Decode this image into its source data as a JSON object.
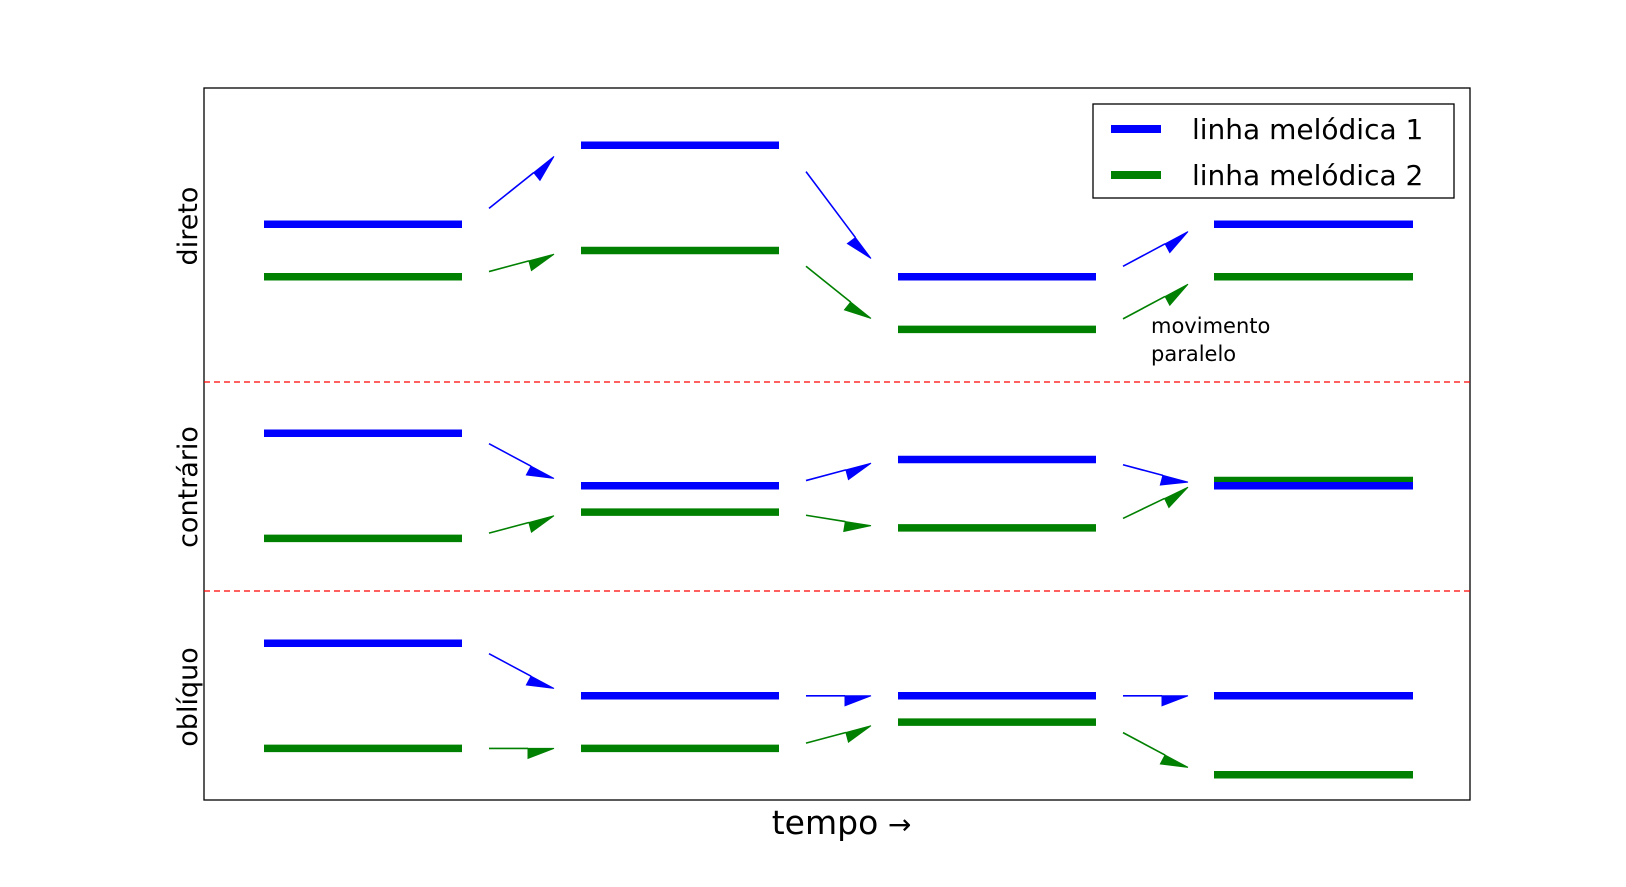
{
  "xlabel": "tempo",
  "xlabel_arrow": "→",
  "annotation": [
    "movimento",
    "paralelo"
  ],
  "legend": {
    "placement": "top-right",
    "entries": [
      {
        "label": "linha melódica 1",
        "color": "#0000ff"
      },
      {
        "label": "linha melódica 2",
        "color": "#008000"
      }
    ]
  },
  "separator_color": "#ff0000",
  "chart_data": {
    "type": "line",
    "steps": 4,
    "panels": [
      {
        "label": "direto",
        "line1": [
          6,
          9,
          4,
          6
        ],
        "line2": [
          4,
          5,
          2,
          4
        ]
      },
      {
        "label": "contrário",
        "line1": [
          6,
          4,
          5,
          4
        ],
        "line2": [
          2,
          3,
          2.4,
          4.2
        ]
      },
      {
        "label": "oblíquo",
        "line1": [
          6,
          4,
          4,
          4
        ],
        "line2": [
          2,
          2,
          3,
          1
        ]
      }
    ]
  }
}
